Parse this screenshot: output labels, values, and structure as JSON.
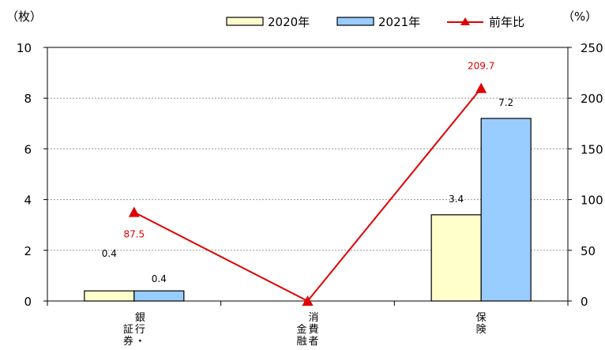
{
  "chart_data": {
    "type": "bar",
    "categories": [
      [
        "銀行・",
        "証券"
      ],
      [
        "消費者",
        "金融"
      ],
      [
        "保険"
      ]
    ],
    "series": [
      {
        "name": "2020年",
        "axis": "left",
        "color": "#ffffcc",
        "values": [
          0.4,
          0,
          3.4
        ],
        "labels": [
          "0.4",
          "",
          "3.4"
        ]
      },
      {
        "name": "2021年",
        "axis": "left",
        "color": "#99ccff",
        "values": [
          0.4,
          0,
          7.2
        ],
        "labels": [
          "0.4",
          "",
          "7.2"
        ]
      },
      {
        "name": "前年比",
        "axis": "right",
        "type": "line",
        "color": "#e00000",
        "values": [
          87.5,
          0,
          209.7
        ],
        "labels": [
          "87.5",
          "",
          "209.7"
        ]
      }
    ],
    "y_left": {
      "unit": "（枚）",
      "min": 0,
      "max": 10,
      "ticks": [
        "0",
        "2",
        "4",
        "6",
        "8",
        "10"
      ]
    },
    "y_right": {
      "unit": "（%）",
      "min": 0,
      "max": 250,
      "ticks": [
        "0",
        "50",
        "100",
        "150",
        "200",
        "250"
      ]
    },
    "grid": true,
    "legend_position": "top"
  }
}
